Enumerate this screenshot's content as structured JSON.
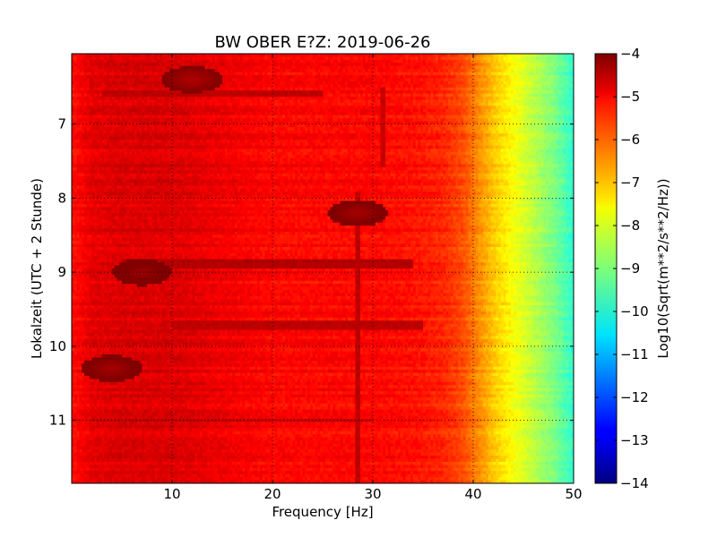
{
  "chart_data": {
    "type": "heatmap",
    "title": "BW OBER E?Z: 2019-06-26",
    "xlabel": "Frequency [Hz]",
    "ylabel": "Lokalzeit (UTC + 2 Stunde)",
    "xlim": [
      0,
      50
    ],
    "ylim": [
      11.85,
      6.05
    ],
    "y_inverted": true,
    "x_ticks": [
      10,
      20,
      30,
      40,
      50
    ],
    "x_tick_labels": [
      "10",
      "20",
      "30",
      "40",
      "50"
    ],
    "y_ticks": [
      7,
      8,
      9,
      10,
      11
    ],
    "y_tick_labels": [
      "7",
      "8",
      "9",
      "10",
      "11"
    ],
    "grid": true,
    "colormap": "jet",
    "colorbar": {
      "label": "Log10(Sqrt(m**2/s**2/Hz))",
      "range": [
        -14,
        -4
      ],
      "ticks": [
        -4,
        -5,
        -6,
        -7,
        -8,
        -9,
        -10,
        -11,
        -12,
        -13,
        -14
      ],
      "tick_labels": [
        "−4",
        "−5",
        "−6",
        "−7",
        "−8",
        "−9",
        "−10",
        "−11",
        "−12",
        "−13",
        "−14"
      ]
    },
    "spectral_profile": {
      "frequency_hz": [
        0,
        2,
        5,
        10,
        15,
        20,
        25,
        30,
        34,
        37,
        39,
        40,
        42,
        44,
        46,
        48,
        50
      ],
      "level": [
        -5.4,
        -5.0,
        -4.9,
        -4.9,
        -5.1,
        -5.3,
        -5.3,
        -5.3,
        -5.4,
        -5.6,
        -6.0,
        -6.4,
        -7.2,
        -7.8,
        -8.4,
        -9.0,
        -9.8
      ]
    },
    "features": [
      {
        "kind": "band",
        "time_start": 8.82,
        "time_end": 8.95,
        "freq_start": 5,
        "freq_end": 34,
        "level": -4.5
      },
      {
        "kind": "band",
        "time_start": 9.65,
        "time_end": 9.78,
        "freq_start": 10,
        "freq_end": 35,
        "level": -4.6
      },
      {
        "kind": "band",
        "time_start": 6.55,
        "time_end": 6.62,
        "freq_start": 3,
        "freq_end": 25,
        "level": -4.6
      },
      {
        "kind": "band",
        "time_start": 10.97,
        "time_end": 11.02,
        "freq_start": 2,
        "freq_end": 30,
        "level": -4.7
      },
      {
        "kind": "line",
        "freq": 28.5,
        "time_start": 7.9,
        "time_end": 11.85,
        "level": -4.6
      },
      {
        "kind": "line",
        "freq": 31,
        "time_start": 6.5,
        "time_end": 7.6,
        "level": -4.7
      },
      {
        "kind": "blob",
        "freq": 28.5,
        "time": 8.2,
        "level": -4.4
      },
      {
        "kind": "blob",
        "freq": 7,
        "time": 9.0,
        "level": -4.3
      },
      {
        "kind": "blob",
        "freq": 4,
        "time": 10.3,
        "level": -4.4
      },
      {
        "kind": "blob",
        "freq": 12,
        "time": 6.4,
        "level": -4.5
      }
    ]
  }
}
